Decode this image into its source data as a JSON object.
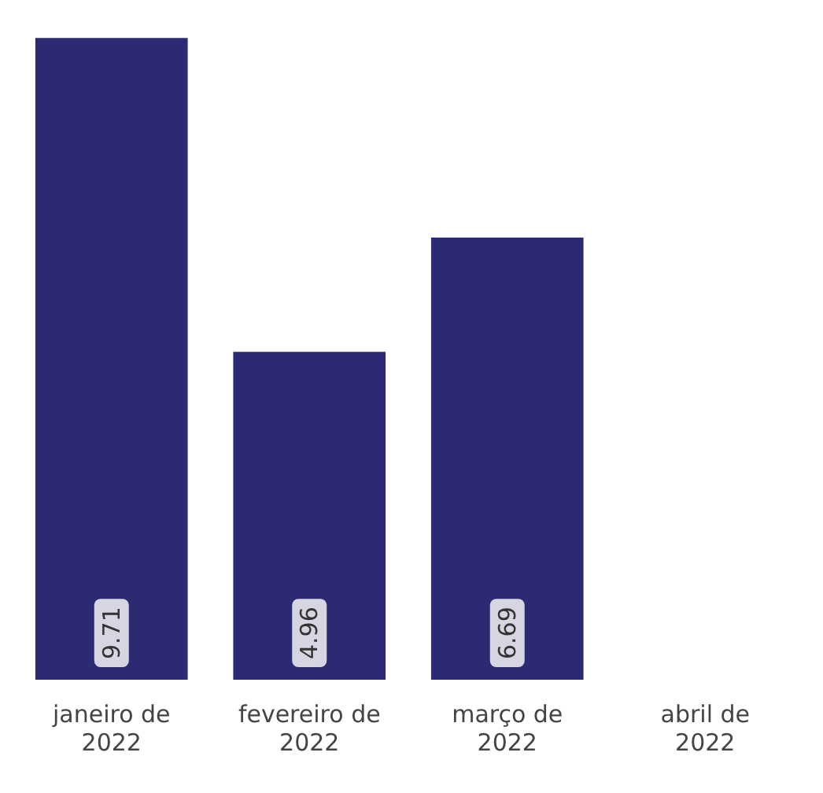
{
  "chart_data": {
    "type": "bar",
    "categories": [
      "janeiro de 2022",
      "fevereiro de 2022",
      "março de 2022",
      "abril de 2022"
    ],
    "values": [
      9.71,
      4.96,
      6.69,
      null
    ],
    "color": "#2b2a72",
    "data_labels": true,
    "grid": false,
    "legend": false,
    "tick_labels": "x"
  }
}
